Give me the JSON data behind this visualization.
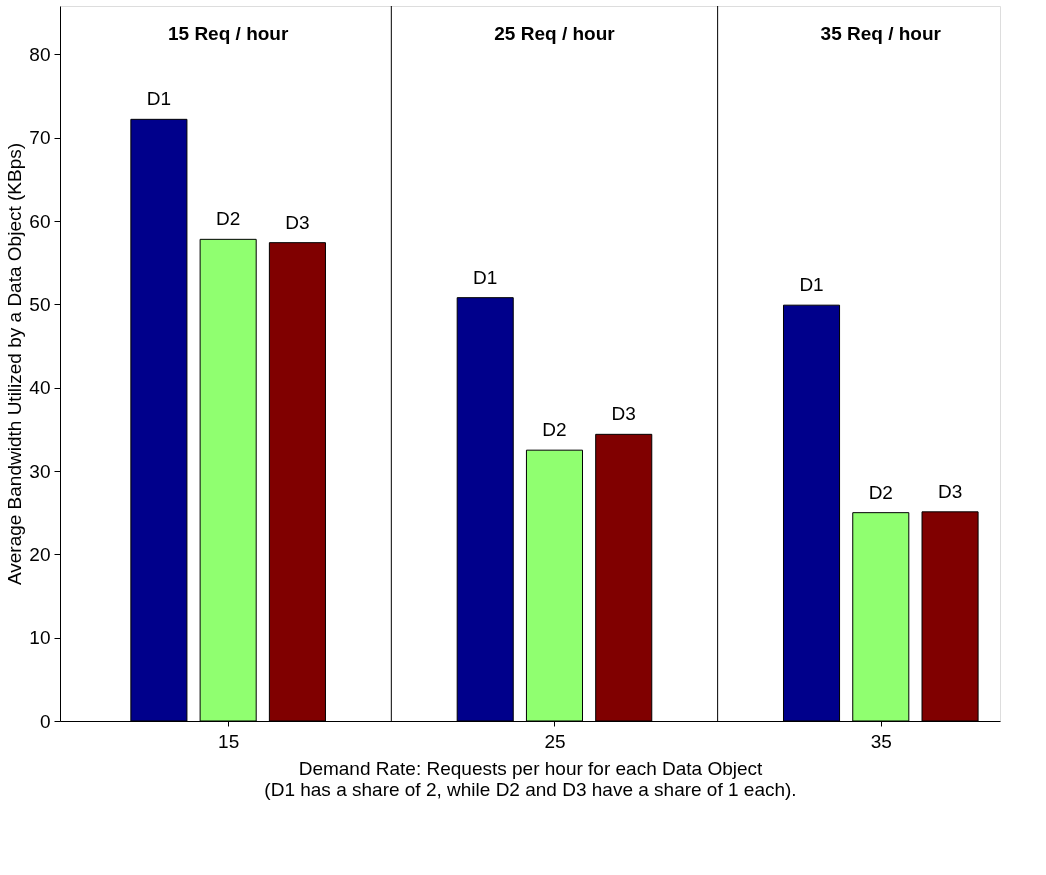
{
  "chart_data": {
    "type": "bar",
    "x": [
      15,
      25,
      35
    ],
    "series": [
      {
        "name": "D1",
        "color": "#00008b",
        "values": [
          72.2,
          50.8,
          49.9
        ]
      },
      {
        "name": "D2",
        "color": "#90ff70",
        "values": [
          57.8,
          32.5,
          25.0
        ]
      },
      {
        "name": "D3",
        "color": "#800000",
        "values": [
          57.4,
          34.4,
          25.1
        ]
      }
    ],
    "xlim": [
      10,
      38.5
    ],
    "xticks": [
      15,
      25,
      35
    ],
    "ylim": [
      0,
      85.8
    ],
    "yticks": [
      0,
      10,
      20,
      30,
      40,
      50,
      60,
      70,
      80
    ],
    "ylabel": "Average Bandwidth Utilized by a Data Object (KBps)",
    "xlabel": "Demand Rate: Requests per hour for each Data Object\n(D1 has a share of 2, while D2 and D3 have a share of 1 each).",
    "annotations": [
      "15 Req / hour",
      "25 Req / hour",
      "35 Req / hour"
    ],
    "ref_lines": [
      {
        "axis": "x",
        "value": 20
      },
      {
        "axis": "x",
        "value": 30
      }
    ],
    "grid": false
  }
}
